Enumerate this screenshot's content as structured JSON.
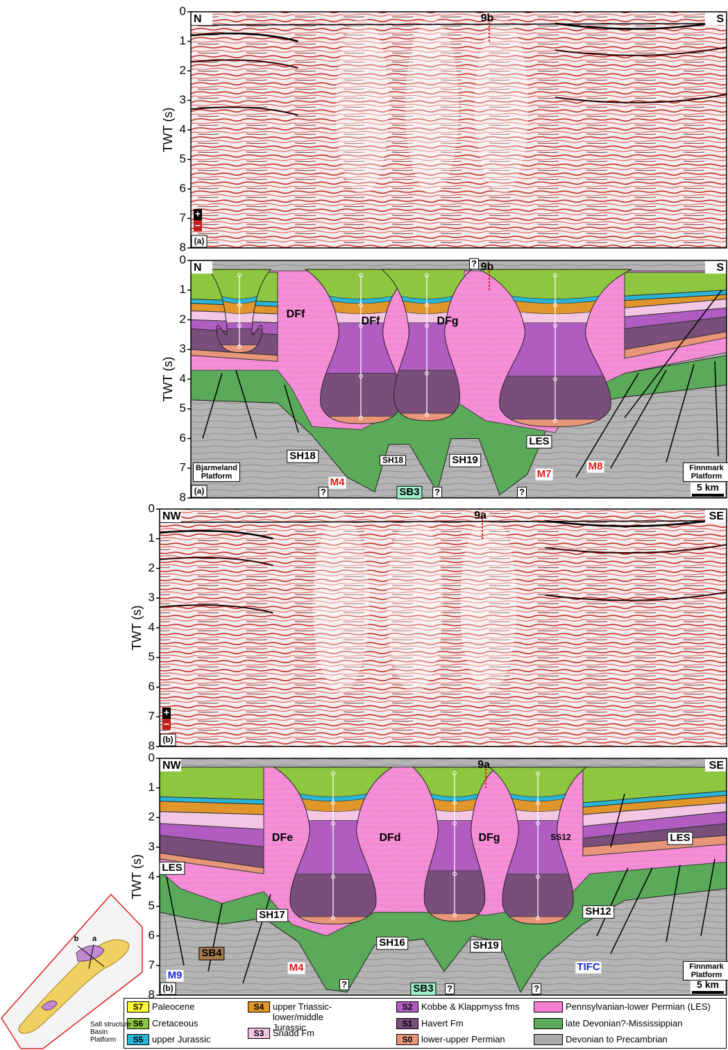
{
  "panels": [
    {
      "type": "seismic",
      "ylabel": "TWT (s)",
      "ylim": [
        0,
        8
      ],
      "yticks": [
        0,
        1,
        2,
        3,
        4,
        5,
        6,
        7,
        8
      ],
      "left": "N",
      "right": "S",
      "marker": "9b",
      "tag": "(a)",
      "polarity": [
        "+",
        "−"
      ]
    },
    {
      "type": "interpreted",
      "ylabel": "TWT (s)",
      "ylim": [
        0,
        8
      ],
      "yticks": [
        0,
        1,
        2,
        3,
        4,
        5,
        6,
        7,
        8
      ],
      "left": "N",
      "right": "S",
      "marker": "9b",
      "tag": "(a)",
      "scale": "5 km",
      "labels": [
        "DFf",
        "DFf",
        "DFg",
        "LES",
        "SH18",
        "SH18",
        "SH19",
        "M4",
        "M7",
        "M8",
        "SB3",
        "?",
        "?",
        "?",
        "?",
        "Bjarmeland Platform",
        "Finnmark Platform"
      ]
    },
    {
      "type": "seismic",
      "ylabel": "TWT (s)",
      "ylim": [
        0,
        8
      ],
      "yticks": [
        0,
        1,
        2,
        3,
        4,
        5,
        6,
        7,
        8
      ],
      "left": "NW",
      "right": "SE",
      "marker": "9a",
      "tag": "(b)",
      "polarity": [
        "+",
        "−"
      ]
    },
    {
      "type": "interpreted",
      "ylabel": "TWT (s)",
      "ylim": [
        0,
        8
      ],
      "yticks": [
        0,
        1,
        2,
        3,
        4,
        5,
        6,
        7,
        8
      ],
      "left": "NW",
      "right": "SE",
      "marker": "9a",
      "tag": "(b)",
      "scale": "5 km",
      "labels": [
        "DFe",
        "DFd",
        "DFg",
        "SS12",
        "LES",
        "LES",
        "SH17",
        "SH16",
        "SH19",
        "SH12",
        "M4",
        "M9",
        "TIFC",
        "SB4",
        "SB3",
        "?",
        "?",
        "?",
        "Finnmark Platform"
      ]
    }
  ],
  "legend": [
    {
      "code": "S7",
      "label": "Paleocene",
      "color": "#ffff33"
    },
    {
      "code": "S6",
      "label": "Cretaceous",
      "color": "#8dc63f"
    },
    {
      "code": "S5",
      "label": "upper Jurassic",
      "color": "#29b6d6"
    },
    {
      "code": "S4",
      "label": "upper Triassic-lower/middle Jurassic",
      "color": "#e0962a"
    },
    {
      "code": "S3",
      "label": "Snadd Fm",
      "color": "#f3c6e4"
    },
    {
      "code": "S2",
      "label": "Kobbe & Klappmyss fms",
      "color": "#b05cc0"
    },
    {
      "code": "S1",
      "label": "Havert Fm",
      "color": "#7a4e7a"
    },
    {
      "code": "S0",
      "label": "lower-upper Permian",
      "color": "#e8967a"
    },
    {
      "label": "Pennsylvanian-lower Permian (LES)",
      "color": "#f27fd0"
    },
    {
      "label": "late Devonian?-Mississippian",
      "color": "#5aaa5a"
    },
    {
      "label": "Devonian to Precambrian",
      "color": "#aaaaaa"
    }
  ],
  "inset": {
    "sections": [
      "a",
      "b"
    ],
    "legend": [
      {
        "label": "Salt structure",
        "color": "#c08ad0"
      },
      {
        "label": "Basin",
        "color": "#f0d060"
      },
      {
        "label": "Platform",
        "color": "#dddddd"
      }
    ]
  }
}
